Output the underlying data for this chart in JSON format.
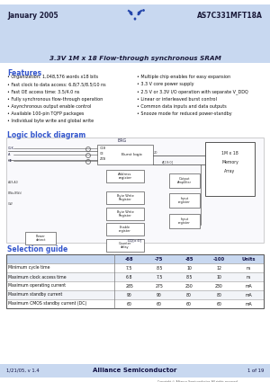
{
  "title_date": "January 2005",
  "title_part": "AS7C331MFT18A",
  "header_subtitle": "3.3V 1M x 18 Flow-through synchronous SRAM",
  "header_bg": "#c8d8f0",
  "page_bg": "#ffffff",
  "features_title": "Features",
  "features_left": [
    "Organization: 1,048,576 words x18 bits",
    "Fast clock to data access: 6.8/7.5/8.5/10 ns",
    "Fast OE access time: 3.5/4.0 ns",
    "Fully synchronous flow-through operation",
    "Asynchronous output enable control",
    "Available 100-pin TQFP packages",
    "Individual byte write and global write"
  ],
  "features_right": [
    "Multiple chip enables for easy expansion",
    "3.3 V core power supply",
    "2.5 V or 3.3V I/O operation with separate V_DDQ",
    "Linear or interleaved burst control",
    "Common data inputs and data outputs",
    "Snooze mode for reduced power-standby"
  ],
  "logic_title": "Logic block diagram",
  "selection_title": "Selection guide",
  "table_headers": [
    "-68",
    "-75",
    "-85",
    "-100",
    "Units"
  ],
  "table_rows": [
    [
      "Minimum cycle time",
      "7.5",
      "8.5",
      "10",
      "12",
      "ns"
    ],
    [
      "Maximum clock access time",
      "6.8",
      "7.5",
      "8.5",
      "10",
      "ns"
    ],
    [
      "Maximum operating current",
      "285",
      "275",
      "250",
      "230",
      "mA"
    ],
    [
      "Maximum standby current",
      "90",
      "90",
      "80",
      "80",
      "mA"
    ],
    [
      "Maximum CMOS standby current (DC)",
      "60",
      "60",
      "60",
      "60",
      "mA"
    ]
  ],
  "footer_left": "1/21/05, v 1.4",
  "footer_center": "Alliance Semiconductor",
  "footer_right": "1 of 19",
  "footer_copyright": "Copyright © Alliance Semiconductor. All rights reserved.",
  "accent_color": "#3355cc",
  "table_header_bg": "#c8d8f0",
  "footer_bg": "#c8d8f0",
  "logo_color": "#2244aa"
}
